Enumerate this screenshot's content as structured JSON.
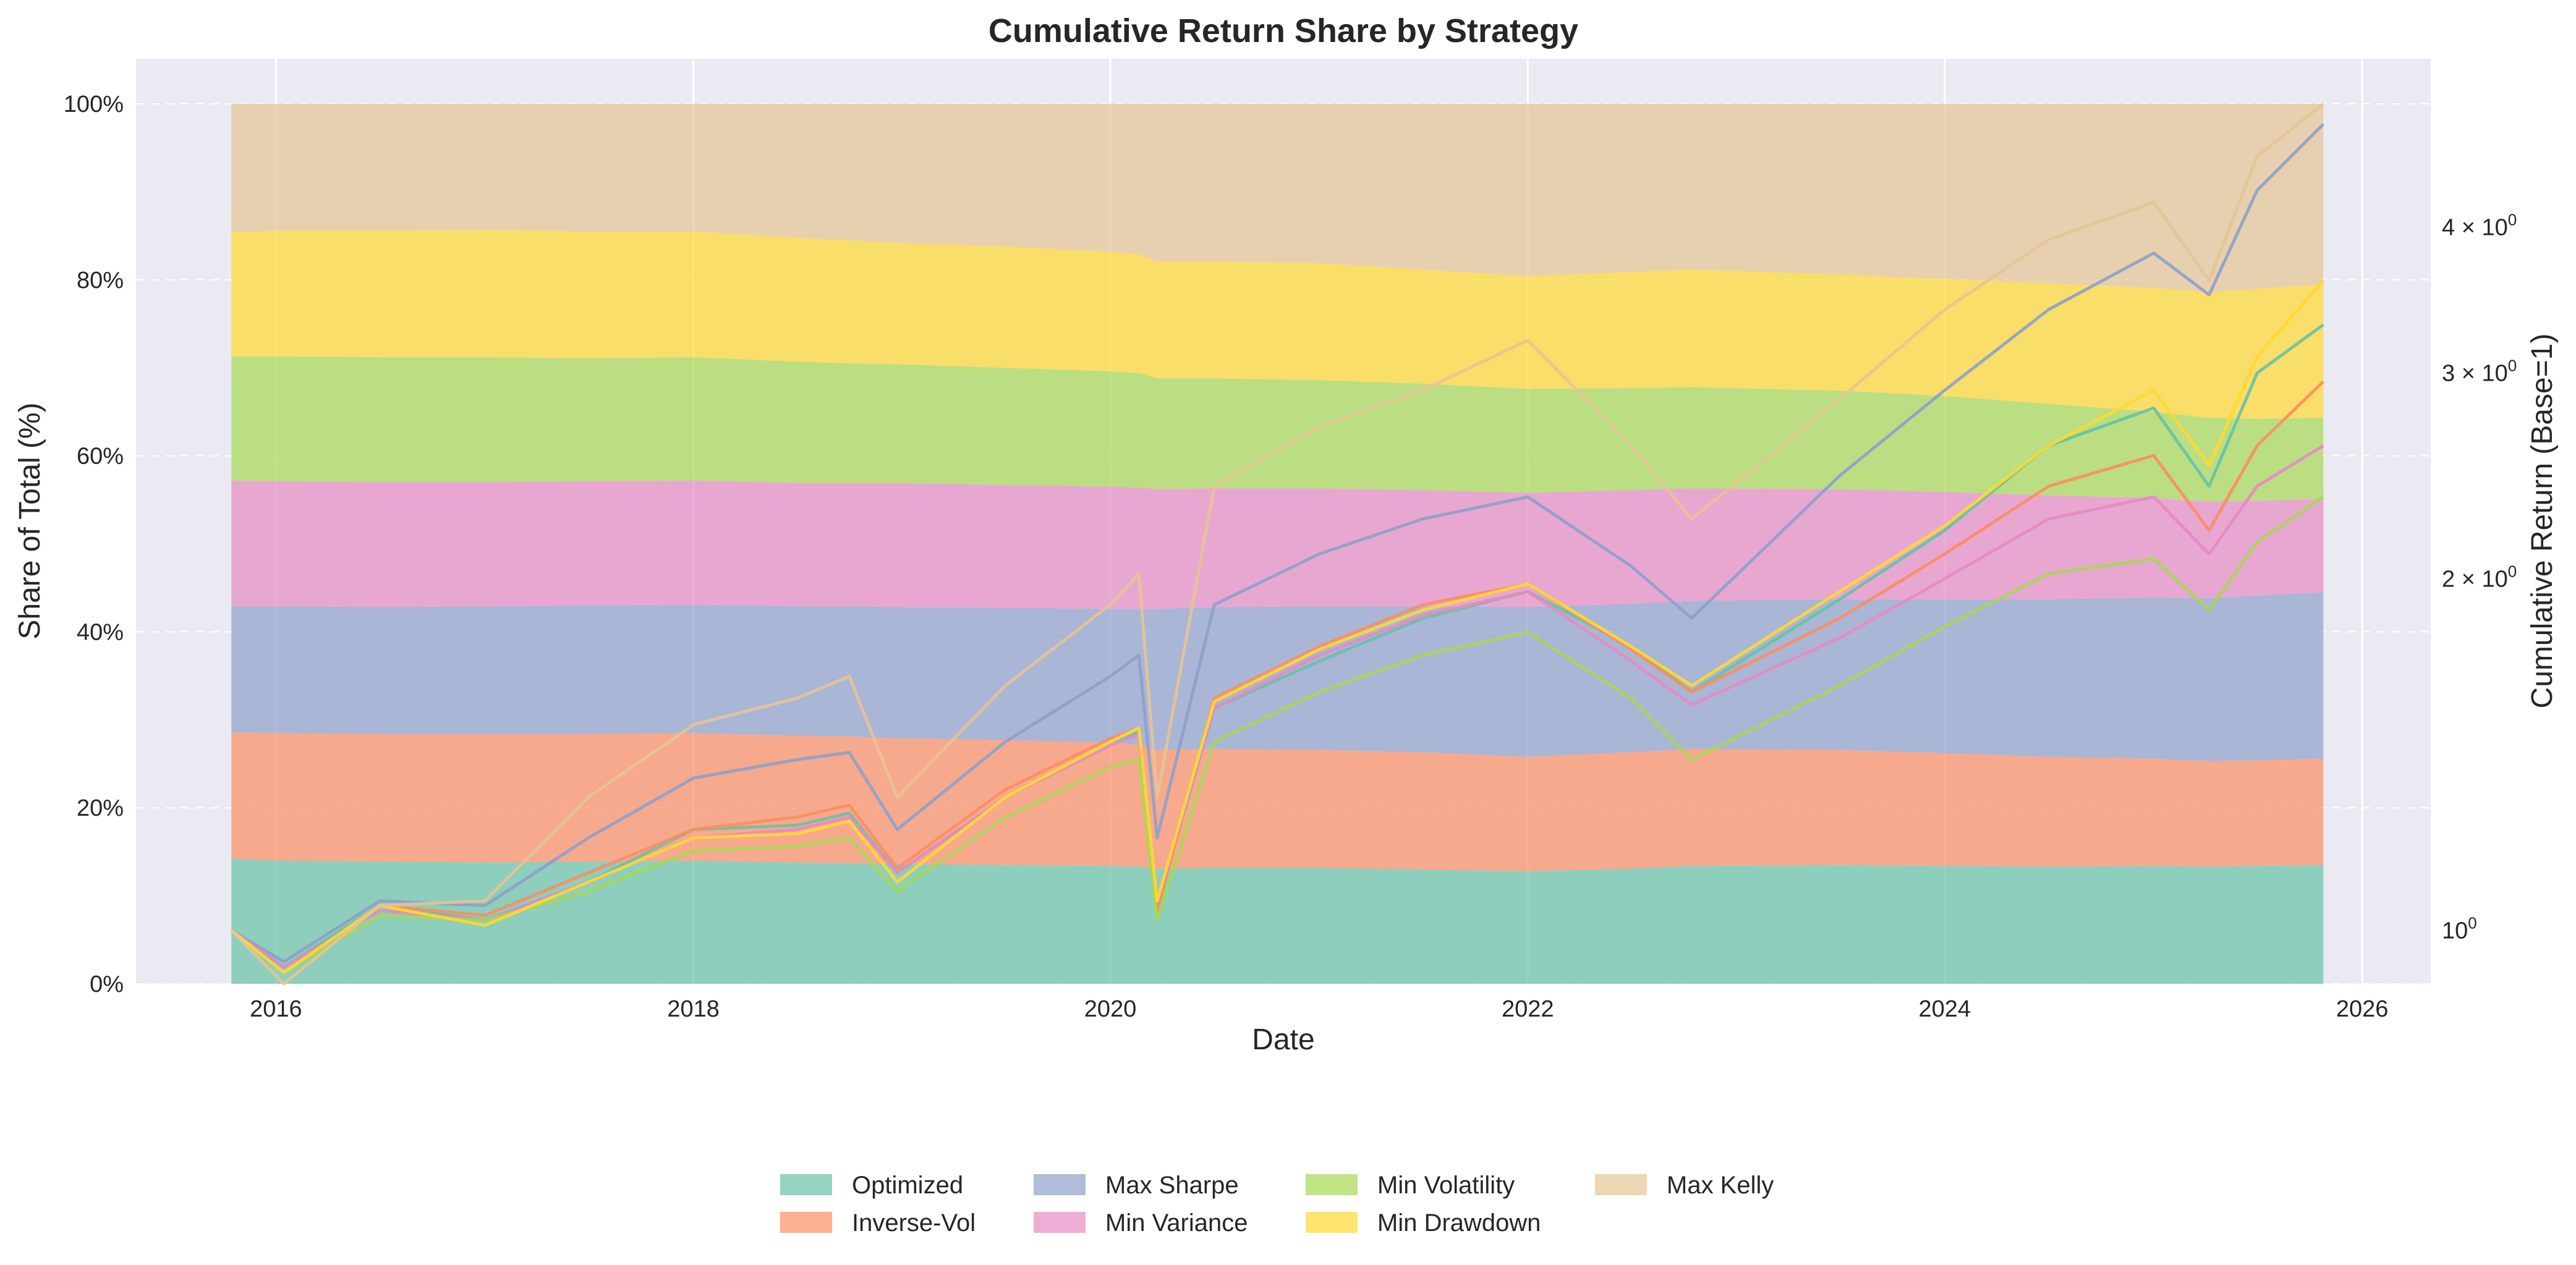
{
  "chart_data": {
    "type": "area",
    "title": "Cumulative Return Share by Strategy",
    "xlabel": "Date",
    "ylabel": "Share of Total (%)",
    "y2label": "Cumulative Return (Base=1)",
    "x_ticks": [
      "2016",
      "2018",
      "2020",
      "2022",
      "2024",
      "2026"
    ],
    "x_range": [
      "2015-05-01",
      "2026-05-01"
    ],
    "y_ticks": [
      "0%",
      "20%",
      "40%",
      "60%",
      "80%",
      "100%"
    ],
    "ylim": [
      0,
      100
    ],
    "y2_scale": "log",
    "y2lim": [
      0.9,
      5.1
    ],
    "y2_ticks": [
      {
        "value": 1,
        "base": "10",
        "exp": "0"
      },
      {
        "value": 2,
        "base": "2 × 10",
        "exp": "0"
      },
      {
        "value": 3,
        "base": "3 × 10",
        "exp": "0"
      },
      {
        "value": 4,
        "base": "4 × 10",
        "exp": "0"
      }
    ],
    "grid": true,
    "legend_position": "bottom-center",
    "dates": [
      "2015-10-15",
      "2016-01-15",
      "2016-07-01",
      "2017-01-01",
      "2017-07-01",
      "2018-01-01",
      "2018-07-01",
      "2018-10-01",
      "2018-12-24",
      "2019-07-01",
      "2020-01-01",
      "2020-02-20",
      "2020-03-23",
      "2020-07-01",
      "2021-01-01",
      "2021-07-01",
      "2022-01-01",
      "2022-07-01",
      "2022-10-15",
      "2023-07-01",
      "2024-01-01",
      "2024-07-01",
      "2025-01-01",
      "2025-04-08",
      "2025-07-01",
      "2025-10-25"
    ],
    "series": [
      {
        "name": "Optimized",
        "color": "#66c2a5",
        "share": [
          14.2,
          14.0,
          13.9,
          13.8,
          13.9,
          14.0,
          13.8,
          13.7,
          13.6,
          13.5,
          13.4,
          13.3,
          13.1,
          13.2,
          13.2,
          13.0,
          12.8,
          13.1,
          13.4,
          13.5,
          13.4,
          13.3,
          13.4,
          13.3,
          13.4,
          13.5
        ],
        "values": [
          1.0,
          0.93,
          1.05,
          1.02,
          1.1,
          1.22,
          1.23,
          1.26,
          1.12,
          1.3,
          1.45,
          1.48,
          1.05,
          1.55,
          1.7,
          1.85,
          1.95,
          1.75,
          1.6,
          1.92,
          2.2,
          2.6,
          2.8,
          2.4,
          3.0,
          3.3
        ]
      },
      {
        "name": "Inverse-Vol",
        "color": "#fc8d62",
        "share": [
          14.4,
          14.5,
          14.5,
          14.6,
          14.5,
          14.5,
          14.4,
          14.4,
          14.3,
          14.2,
          14.0,
          13.9,
          13.5,
          13.5,
          13.4,
          13.3,
          13.0,
          13.2,
          13.3,
          13.1,
          12.8,
          12.5,
          12.2,
          12.0,
          12.0,
          12.1
        ],
        "values": [
          1.0,
          0.92,
          1.05,
          1.03,
          1.12,
          1.22,
          1.25,
          1.28,
          1.13,
          1.32,
          1.46,
          1.49,
          1.04,
          1.58,
          1.75,
          1.9,
          1.98,
          1.74,
          1.6,
          1.85,
          2.1,
          2.4,
          2.55,
          2.2,
          2.6,
          2.95
        ]
      },
      {
        "name": "Max Sharpe",
        "color": "#8da0cb",
        "share": [
          14.3,
          14.4,
          14.4,
          14.5,
          14.6,
          14.6,
          14.7,
          14.8,
          14.9,
          15.0,
          15.2,
          15.4,
          16.0,
          16.1,
          16.3,
          16.6,
          17.0,
          16.9,
          16.8,
          17.1,
          17.5,
          17.9,
          18.3,
          18.5,
          18.7,
          18.9
        ],
        "values": [
          1.0,
          0.94,
          1.06,
          1.05,
          1.2,
          1.35,
          1.4,
          1.42,
          1.22,
          1.45,
          1.65,
          1.72,
          1.2,
          1.9,
          2.1,
          2.25,
          2.35,
          2.05,
          1.85,
          2.45,
          2.9,
          3.4,
          3.8,
          3.5,
          4.3,
          4.9
        ]
      },
      {
        "name": "Min Variance",
        "color": "#e78ac3",
        "share": [
          14.3,
          14.2,
          14.2,
          14.1,
          14.1,
          14.1,
          14.0,
          14.0,
          14.1,
          14.0,
          13.9,
          13.8,
          13.6,
          13.5,
          13.4,
          13.2,
          13.0,
          12.9,
          12.8,
          12.5,
          12.2,
          11.8,
          11.3,
          11.0,
          10.8,
          10.6
        ],
        "values": [
          1.0,
          0.93,
          1.04,
          1.02,
          1.1,
          1.2,
          1.22,
          1.25,
          1.12,
          1.3,
          1.44,
          1.47,
          1.06,
          1.55,
          1.72,
          1.86,
          1.95,
          1.7,
          1.56,
          1.78,
          2.0,
          2.25,
          2.35,
          2.1,
          2.4,
          2.6
        ]
      },
      {
        "name": "Min Volatility",
        "color": "#a6d854",
        "share": [
          14.1,
          14.2,
          14.2,
          14.2,
          14.0,
          14.0,
          13.8,
          13.6,
          13.5,
          13.3,
          13.1,
          13.0,
          12.6,
          12.5,
          12.3,
          12.1,
          11.8,
          11.6,
          11.5,
          11.2,
          10.9,
          10.4,
          9.8,
          9.5,
          9.3,
          9.2
        ],
        "values": [
          1.0,
          0.92,
          1.03,
          1.02,
          1.08,
          1.17,
          1.18,
          1.2,
          1.08,
          1.25,
          1.38,
          1.4,
          1.02,
          1.45,
          1.6,
          1.72,
          1.8,
          1.58,
          1.4,
          1.62,
          1.82,
          2.02,
          2.08,
          1.88,
          2.15,
          2.35
        ]
      },
      {
        "name": "Min Drawdown",
        "color": "#ffd92f",
        "share": [
          14.1,
          14.3,
          14.4,
          14.5,
          14.4,
          14.3,
          14.1,
          14.0,
          13.8,
          13.8,
          13.6,
          13.5,
          13.3,
          13.3,
          13.3,
          13.0,
          12.8,
          13.2,
          13.4,
          13.2,
          13.3,
          13.7,
          14.1,
          14.3,
          14.8,
          15.2
        ],
        "values": [
          1.0,
          0.92,
          1.05,
          1.01,
          1.1,
          1.2,
          1.21,
          1.24,
          1.1,
          1.3,
          1.45,
          1.49,
          1.06,
          1.57,
          1.74,
          1.88,
          1.98,
          1.75,
          1.62,
          1.95,
          2.22,
          2.6,
          2.9,
          2.5,
          3.1,
          3.6
        ]
      },
      {
        "name": "Max Kelly",
        "color": "#e5c494",
        "share": [
          14.6,
          14.4,
          14.4,
          14.3,
          14.5,
          14.5,
          15.2,
          15.5,
          15.8,
          16.2,
          16.8,
          17.1,
          17.9,
          17.9,
          18.1,
          18.8,
          19.6,
          19.1,
          18.8,
          19.4,
          19.9,
          20.4,
          20.9,
          21.4,
          21.0,
          20.5
        ],
        "values": [
          1.0,
          0.9,
          1.05,
          1.06,
          1.3,
          1.5,
          1.58,
          1.65,
          1.3,
          1.62,
          1.9,
          2.02,
          1.3,
          2.4,
          2.7,
          2.9,
          3.2,
          2.6,
          2.25,
          2.85,
          3.4,
          3.9,
          4.2,
          3.6,
          4.6,
          5.1
        ]
      }
    ]
  }
}
